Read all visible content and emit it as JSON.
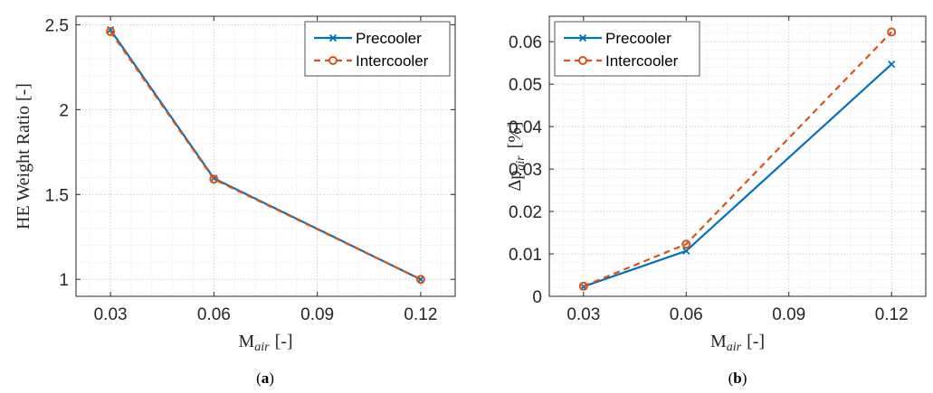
{
  "colors": {
    "precooler": "#0072BD",
    "intercooler": "#D95319",
    "grid": "#dcdcdc",
    "axis": "#262626"
  },
  "chart_data": [
    {
      "type": "line",
      "xlabel": "M",
      "xlabel_sub": "air",
      "xlabel_unit": "[-]",
      "ylabel": "HE Weight Ratio [-]",
      "xlim": [
        0.02,
        0.13
      ],
      "ylim": [
        0.9,
        2.55
      ],
      "xticks": [
        0.03,
        0.06,
        0.09,
        0.12
      ],
      "xtick_labels": [
        "0.03",
        "0.06",
        "0.09",
        "0.12"
      ],
      "yticks": [
        1,
        1.5,
        2,
        2.5
      ],
      "ytick_labels": [
        "1",
        "1.5",
        "2",
        "2.5"
      ],
      "grid": true,
      "legend_position": "top-right",
      "caption": "a",
      "series": [
        {
          "name": "Precooler",
          "x": [
            0.03,
            0.06,
            0.12
          ],
          "y": [
            2.47,
            1.595,
            1.0
          ],
          "marker": "x",
          "dash": false
        },
        {
          "name": "Intercooler",
          "x": [
            0.03,
            0.06,
            0.12
          ],
          "y": [
            2.46,
            1.59,
            1.0
          ],
          "marker": "o",
          "dash": true
        }
      ]
    },
    {
      "type": "line",
      "xlabel": "M",
      "xlabel_sub": "air",
      "xlabel_unit": "[-]",
      "ylabel": "Δp",
      "ylabel_sub": "air",
      "ylabel_unit": "[%]",
      "xlim": [
        0.02,
        0.13
      ],
      "ylim": [
        0,
        0.066
      ],
      "xticks": [
        0.03,
        0.06,
        0.09,
        0.12
      ],
      "xtick_labels": [
        "0.03",
        "0.06",
        "0.09",
        "0.12"
      ],
      "yticks": [
        0,
        0.01,
        0.02,
        0.03,
        0.04,
        0.05,
        0.06
      ],
      "ytick_labels": [
        "0",
        "0.01",
        "0.02",
        "0.03",
        "0.04",
        "0.05",
        "0.06"
      ],
      "grid": true,
      "legend_position": "top-left",
      "caption": "b",
      "series": [
        {
          "name": "Precooler",
          "x": [
            0.03,
            0.06,
            0.12
          ],
          "y": [
            0.0023,
            0.0107,
            0.0547
          ],
          "marker": "x",
          "dash": false
        },
        {
          "name": "Intercooler",
          "x": [
            0.03,
            0.06,
            0.12
          ],
          "y": [
            0.0024,
            0.0123,
            0.0623
          ],
          "marker": "o",
          "dash": true
        }
      ]
    }
  ]
}
